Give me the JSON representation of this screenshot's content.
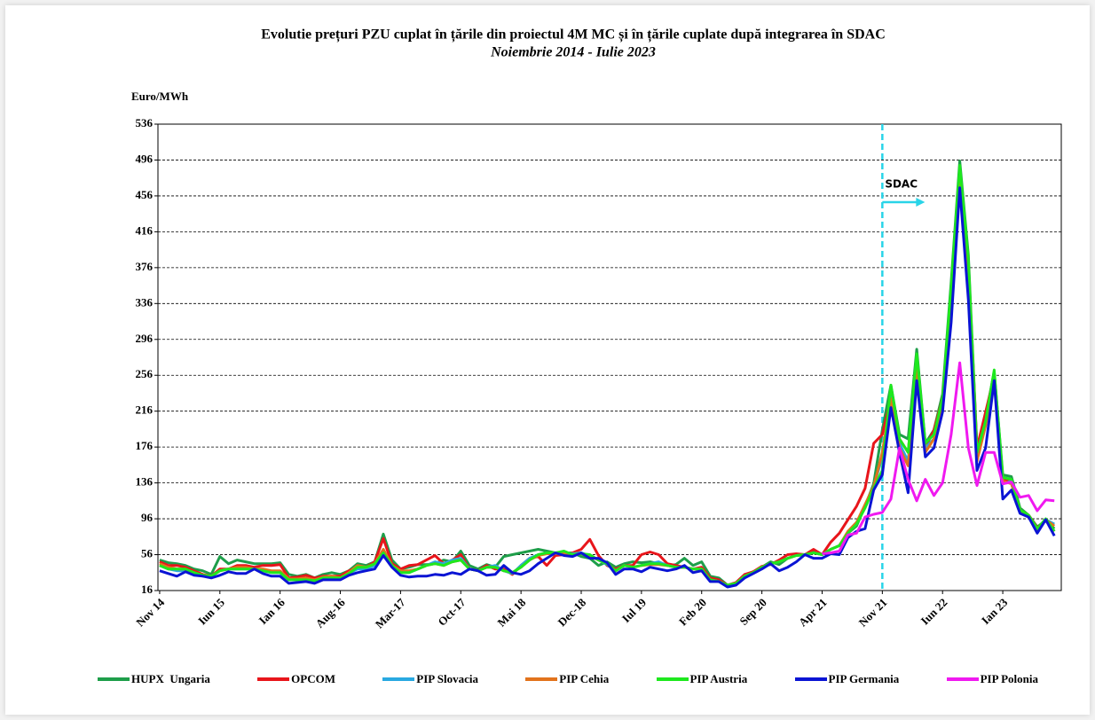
{
  "chart_data": {
    "type": "line",
    "title": "Evolutie prețuri PZU cuplat în țările din proiectul 4M MC și în țările cuplate după integrarea în SDAC",
    "subtitle": "Noiembrie 2014 - Iulie 2023",
    "y_label": "Euro/MWh",
    "categories": [
      "Nov 14",
      null,
      null,
      null,
      null,
      null,
      null,
      "Iun 15",
      null,
      null,
      null,
      null,
      null,
      null,
      "Ian 16",
      null,
      null,
      null,
      null,
      null,
      null,
      "Aug-16",
      null,
      null,
      null,
      null,
      null,
      null,
      "Mar-17",
      null,
      null,
      null,
      null,
      null,
      null,
      "Oct-17",
      null,
      null,
      null,
      null,
      null,
      null,
      "Mai 18",
      null,
      null,
      null,
      null,
      null,
      null,
      "Dec-18",
      null,
      null,
      null,
      null,
      null,
      null,
      "Iul 19",
      null,
      null,
      null,
      null,
      null,
      null,
      "Feb 20",
      null,
      null,
      null,
      null,
      null,
      null,
      "Sep 20",
      null,
      null,
      null,
      null,
      null,
      null,
      "Apr 21",
      null,
      null,
      null,
      null,
      null,
      null,
      "Nov 21",
      null,
      null,
      null,
      null,
      null,
      null,
      "Iun 22",
      null,
      null,
      null,
      null,
      null,
      null,
      "Ian 23",
      null,
      null,
      null,
      null,
      null,
      null
    ],
    "series": [
      {
        "name": "HUPX  Ungaria",
        "color": "#1e9e4a",
        "values": [
          50,
          47,
          46,
          44,
          40,
          38,
          34,
          54,
          46,
          50,
          48,
          46,
          46,
          46,
          47,
          34,
          32,
          34,
          30,
          34,
          36,
          34,
          38,
          46,
          44,
          48,
          79,
          50,
          40,
          42,
          45,
          45,
          46,
          50,
          48,
          60,
          44,
          40,
          45,
          42,
          54,
          56,
          58,
          60,
          62,
          60,
          58,
          58,
          58,
          54,
          52,
          44,
          48,
          42,
          46,
          48,
          47,
          48,
          46,
          44,
          45,
          52,
          44,
          48,
          32,
          30,
          22,
          24,
          33,
          37,
          42,
          48,
          45,
          52,
          55,
          56,
          60,
          56,
          62,
          66,
          80,
          88,
          110,
          135,
          195,
          245,
          190,
          185,
          285,
          180,
          195,
          235,
          360,
          495,
          390,
          175,
          210,
          260,
          145,
          143,
          108,
          100,
          87,
          94,
          85
        ]
      },
      {
        "name": "OPCOM",
        "color": "#e8151b",
        "values": [
          48,
          44,
          44,
          42,
          38,
          34,
          32,
          40,
          40,
          44,
          44,
          42,
          44,
          44,
          45,
          30,
          31,
          33,
          30,
          32,
          32,
          32,
          38,
          42,
          42,
          48,
          74,
          46,
          40,
          44,
          45,
          50,
          55,
          46,
          50,
          56,
          40,
          38,
          44,
          40,
          40,
          34,
          44,
          52,
          54,
          44,
          55,
          56,
          58,
          62,
          73,
          55,
          44,
          40,
          44,
          44,
          56,
          59,
          56,
          46,
          44,
          42,
          40,
          42,
          30,
          28,
          22,
          25,
          34,
          37,
          43,
          45,
          50,
          56,
          57,
          56,
          62,
          56,
          70,
          80,
          95,
          110,
          130,
          180,
          190,
          230,
          185,
          170,
          270,
          175,
          195,
          230,
          350,
          485,
          380,
          175,
          215,
          255,
          140,
          138,
          106,
          100,
          86,
          94,
          82
        ]
      },
      {
        "name": "PIP Slovacia",
        "color": "#29a9e1",
        "values": [
          44,
          40,
          38,
          38,
          36,
          32,
          32,
          38,
          40,
          40,
          40,
          40,
          38,
          36,
          36,
          28,
          28,
          28,
          27,
          30,
          30,
          30,
          35,
          40,
          40,
          44,
          58,
          44,
          36,
          36,
          40,
          44,
          48,
          46,
          50,
          52,
          40,
          38,
          42,
          44,
          38,
          35,
          44,
          52,
          56,
          58,
          58,
          58,
          57,
          58,
          55,
          50,
          45,
          38,
          44,
          42,
          44,
          46,
          48,
          44,
          42,
          42,
          40,
          40,
          28,
          26,
          22,
          24,
          32,
          36,
          42,
          46,
          48,
          52,
          55,
          56,
          58,
          56,
          62,
          66,
          80,
          90,
          110,
          132,
          165,
          235,
          180,
          160,
          270,
          175,
          185,
          225,
          345,
          480,
          375,
          165,
          200,
          255,
          135,
          138,
          105,
          99,
          84,
          95,
          90
        ]
      },
      {
        "name": "PIP Cehia",
        "color": "#e2731c",
        "values": [
          46,
          42,
          40,
          40,
          36,
          33,
          32,
          38,
          40,
          42,
          42,
          40,
          40,
          38,
          38,
          29,
          29,
          30,
          28,
          31,
          32,
          30,
          36,
          44,
          42,
          46,
          62,
          44,
          38,
          38,
          40,
          44,
          46,
          44,
          48,
          50,
          40,
          38,
          42,
          42,
          38,
          36,
          42,
          50,
          55,
          57,
          57,
          57,
          56,
          57,
          55,
          50,
          46,
          38,
          44,
          42,
          44,
          45,
          45,
          44,
          42,
          42,
          40,
          40,
          28,
          26,
          22,
          24,
          32,
          36,
          42,
          46,
          48,
          52,
          55,
          56,
          58,
          56,
          62,
          66,
          82,
          92,
          112,
          132,
          170,
          230,
          175,
          155,
          265,
          170,
          185,
          222,
          340,
          475,
          370,
          160,
          200,
          250,
          138,
          135,
          104,
          98,
          84,
          95,
          88
        ]
      },
      {
        "name": "PIP Austria",
        "color": "#1ee81e",
        "values": [
          44,
          40,
          40,
          40,
          36,
          33,
          32,
          38,
          40,
          40,
          40,
          40,
          38,
          36,
          36,
          28,
          28,
          28,
          27,
          30,
          30,
          30,
          35,
          42,
          42,
          46,
          58,
          44,
          36,
          36,
          40,
          44,
          46,
          44,
          48,
          50,
          40,
          38,
          42,
          42,
          38,
          36,
          42,
          50,
          56,
          58,
          58,
          60,
          56,
          57,
          56,
          50,
          46,
          38,
          44,
          42,
          44,
          46,
          46,
          44,
          42,
          42,
          40,
          40,
          28,
          26,
          22,
          24,
          32,
          36,
          42,
          46,
          48,
          52,
          55,
          56,
          58,
          56,
          62,
          66,
          80,
          90,
          108,
          130,
          150,
          245,
          185,
          170,
          280,
          180,
          190,
          230,
          355,
          490,
          385,
          170,
          205,
          262,
          142,
          140,
          106,
          100,
          85,
          96,
          82
        ]
      },
      {
        "name": "PIP Germania",
        "color": "#0a14d4",
        "values": [
          38,
          35,
          32,
          37,
          33,
          32,
          30,
          33,
          37,
          35,
          35,
          40,
          35,
          32,
          32,
          24,
          25,
          26,
          24,
          28,
          28,
          28,
          33,
          36,
          38,
          40,
          55,
          42,
          33,
          31,
          32,
          32,
          34,
          33,
          36,
          34,
          40,
          38,
          33,
          34,
          44,
          36,
          34,
          38,
          46,
          52,
          58,
          55,
          54,
          58,
          52,
          52,
          47,
          34,
          40,
          40,
          37,
          42,
          40,
          38,
          40,
          44,
          36,
          38,
          26,
          26,
          20,
          22,
          30,
          35,
          40,
          46,
          38,
          42,
          48,
          56,
          52,
          52,
          57,
          56,
          75,
          82,
          85,
          128,
          145,
          220,
          170,
          125,
          250,
          165,
          175,
          215,
          315,
          465,
          340,
          150,
          175,
          250,
          118,
          128,
          102,
          98,
          80,
          95,
          77
        ]
      },
      {
        "name": "PIP Polonia",
        "color": "#f019f0",
        "values": [
          null,
          null,
          null,
          null,
          null,
          null,
          null,
          null,
          null,
          null,
          null,
          null,
          null,
          null,
          null,
          null,
          null,
          null,
          null,
          null,
          null,
          null,
          null,
          null,
          null,
          null,
          null,
          null,
          null,
          null,
          null,
          null,
          null,
          null,
          null,
          null,
          null,
          null,
          null,
          null,
          null,
          null,
          null,
          null,
          null,
          null,
          null,
          null,
          null,
          null,
          null,
          null,
          null,
          null,
          null,
          null,
          null,
          null,
          null,
          null,
          null,
          null,
          null,
          null,
          null,
          null,
          null,
          null,
          null,
          null,
          null,
          null,
          null,
          null,
          null,
          null,
          null,
          57,
          58,
          60,
          78,
          80,
          98,
          101,
          103,
          118,
          175,
          140,
          116,
          140,
          122,
          136,
          190,
          270,
          175,
          133,
          170,
          170,
          135,
          137,
          120,
          122,
          105,
          117,
          116
        ]
      }
    ],
    "ylim": [
      16,
      536
    ],
    "yticks": [
      16,
      56,
      96,
      136,
      176,
      216,
      256,
      296,
      336,
      376,
      416,
      456,
      496,
      536
    ],
    "grid": true,
    "legend": "bottom",
    "annotations": [
      {
        "text": "SDAC",
        "at": "Nov 21",
        "color": "#29d4e8"
      }
    ]
  }
}
